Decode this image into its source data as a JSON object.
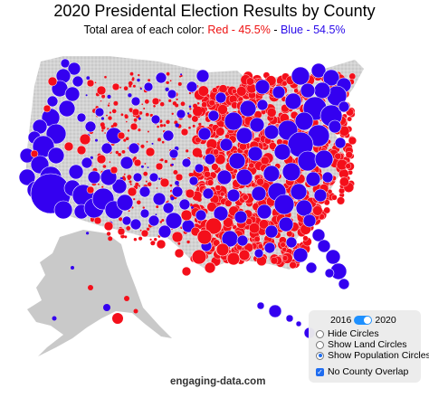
{
  "header": {
    "title": "2020 Presidental Election Results by County",
    "subtitle_prefix": "Total area of each color: ",
    "red_label": "Red - 45.5%",
    "separator": " - ",
    "blue_label": "Blue - 54.5%"
  },
  "controls": {
    "year_left": "2016",
    "year_right": "2020",
    "year_toggle_on": true,
    "options": [
      {
        "label": "Hide Circles",
        "selected": false
      },
      {
        "label": "Show Land Circles",
        "selected": false
      },
      {
        "label": "Show Population Circles",
        "selected": true
      }
    ],
    "overlap_label": "No County Overlap",
    "overlap_checked": true
  },
  "credit": "engaging-data.com",
  "colors": {
    "red": "#f40f1a",
    "blue": "#3400f0",
    "land": "#c9c9c9",
    "county_lines": "#ffffff"
  }
}
